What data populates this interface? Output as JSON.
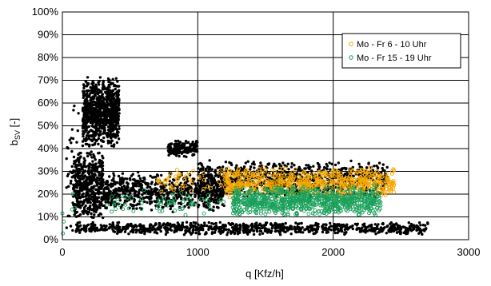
{
  "chart_data": {
    "type": "scatter",
    "xlabel": "q [Kfz/h]",
    "ylabel_main": "b",
    "ylabel_sub": "SV",
    "ylabel_suffix": " [-]",
    "xlim": [
      0,
      3000
    ],
    "ylim": [
      0,
      100
    ],
    "x_ticks": [
      0,
      1000,
      2000,
      3000
    ],
    "y_ticks": [
      0,
      10,
      20,
      30,
      40,
      50,
      60,
      70,
      80,
      90,
      100
    ],
    "y_tick_format": "percent",
    "grid": "vertical and horizontal major gridlines",
    "legend_position": "top-right",
    "series": [
      {
        "name": "",
        "color": "#000000",
        "marker": "filled-circle",
        "clusters": [
          {
            "x": [
              150,
              420
            ],
            "y": [
              40,
              72
            ],
            "n": 900
          },
          {
            "x": [
              80,
              300
            ],
            "y": [
              8,
              40
            ],
            "n": 500
          },
          {
            "x": [
              300,
              1200
            ],
            "y": [
              12,
              30
            ],
            "n": 700
          },
          {
            "x": [
              780,
              1000
            ],
            "y": [
              36,
              44
            ],
            "n": 160
          },
          {
            "x": [
              1000,
              2400
            ],
            "y": [
              18,
              35
            ],
            "n": 900
          },
          {
            "x": [
              100,
              2700
            ],
            "y": [
              2,
              8
            ],
            "n": 900
          },
          {
            "x": [
              30,
              120
            ],
            "y": [
              0,
              60
            ],
            "n": 40
          }
        ]
      },
      {
        "name": "Mo - Fr 6 - 10 Uhr",
        "color": "#F5A800",
        "marker": "open-circle",
        "clusters": [
          {
            "x": [
              1200,
              2450
            ],
            "y": [
              18,
              32
            ],
            "n": 650
          },
          {
            "x": [
              700,
              1300
            ],
            "y": [
              20,
              32
            ],
            "n": 60
          }
        ]
      },
      {
        "name": "Mo - Fr 15 - 19 Uhr",
        "color": "#1AA05A",
        "marker": "open-circle",
        "clusters": [
          {
            "x": [
              1250,
              2350
            ],
            "y": [
              10,
              24
            ],
            "n": 800
          },
          {
            "x": [
              300,
              1200
            ],
            "y": [
              10,
              22
            ],
            "n": 60
          },
          {
            "x": [
              0,
              200
            ],
            "y": [
              0,
              32
            ],
            "n": 6
          }
        ]
      }
    ]
  }
}
